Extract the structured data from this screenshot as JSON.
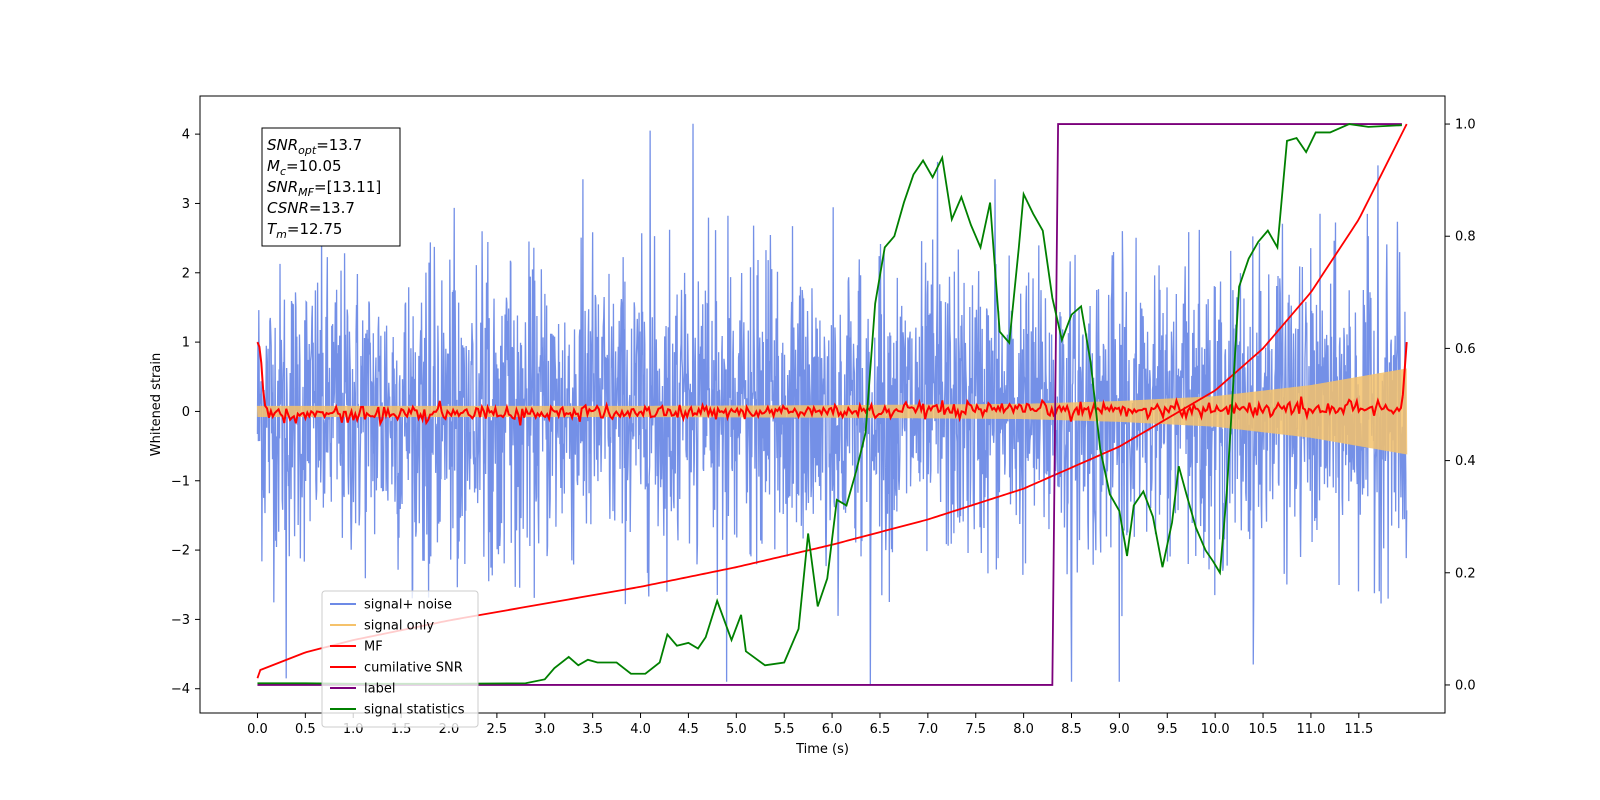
{
  "chart_data": {
    "type": "line",
    "xlabel": "Time (s)",
    "ylabel": "Whitened strain",
    "xlim": [
      -0.6,
      12.4
    ],
    "ylim": [
      -4.35,
      4.55
    ],
    "ylim_right": [
      -0.05,
      1.05
    ],
    "x_ticks": [
      "0.0",
      "0.5",
      "1.0",
      "1.5",
      "2.0",
      "2.5",
      "3.0",
      "3.5",
      "4.0",
      "4.5",
      "5.0",
      "5.5",
      "6.0",
      "6.5",
      "7.0",
      "7.5",
      "8.0",
      "8.5",
      "9.0",
      "9.5",
      "10.0",
      "10.5",
      "11.0",
      "11.5"
    ],
    "y_ticks": [
      "4",
      "3",
      "2",
      "1",
      "0",
      "−1",
      "−2",
      "−3",
      "−4"
    ],
    "y2_ticks": [
      "1.0",
      "0.8",
      "0.6",
      "0.4",
      "0.2",
      "0.0"
    ],
    "grid": false,
    "legend": {
      "placement": "lower-left",
      "entries": [
        {
          "label": "signal+ noise",
          "color": "#6d8ae6"
        },
        {
          "label": "signal only",
          "color": "#f5c26b"
        },
        {
          "label": "MF",
          "color": "#ff0000"
        },
        {
          "label": "cumilative SNR",
          "color": "#ff0000"
        },
        {
          "label": "label",
          "color": "#7b007b"
        },
        {
          "label": "signal statistics",
          "color": "#008000"
        }
      ]
    },
    "annotation": {
      "lines": [
        {
          "sym": "SNR",
          "sub": "opt",
          "val": "=13.7"
        },
        {
          "sym": "M",
          "sub": "c",
          "val": "=10.05"
        },
        {
          "sym": "SNR",
          "sub": "MF",
          "val": "=[13.11]"
        },
        {
          "sym": "CSNR",
          "sub": "",
          "val": "=13.7"
        },
        {
          "sym": "T",
          "sub": "m",
          "val": "=12.75"
        }
      ]
    },
    "series": [
      {
        "name": "signal+ noise",
        "axis": "left",
        "color": "#6d8ae6",
        "description_range": [
          -3.9,
          4.2
        ],
        "t_start": 0.0,
        "t_end": 12.0,
        "spikes": [
          {
            "x": 0.3,
            "y": -3.85
          },
          {
            "x": 4.1,
            "y": 4.05
          },
          {
            "x": 4.55,
            "y": 4.15
          },
          {
            "x": 4.9,
            "y": -3.9
          },
          {
            "x": 6.4,
            "y": -3.95
          },
          {
            "x": 8.5,
            "y": -3.9
          },
          {
            "x": 9.0,
            "y": -3.9
          },
          {
            "x": 10.4,
            "y": -3.65
          },
          {
            "x": 3.4,
            "y": 3.35
          },
          {
            "x": 7.1,
            "y": 3.6
          },
          {
            "x": 11.7,
            "y": 3.55
          },
          {
            "x": 7.7,
            "y": 3.35
          }
        ]
      },
      {
        "name": "signal only",
        "axis": "left",
        "color": "#f5c26b",
        "envelope": [
          {
            "x": 0.0,
            "amp": 0.08
          },
          {
            "x": 4.0,
            "amp": 0.08
          },
          {
            "x": 6.0,
            "amp": 0.09
          },
          {
            "x": 8.0,
            "amp": 0.11
          },
          {
            "x": 9.0,
            "amp": 0.15
          },
          {
            "x": 10.0,
            "amp": 0.22
          },
          {
            "x": 11.0,
            "amp": 0.38
          },
          {
            "x": 12.0,
            "amp": 0.62
          }
        ]
      },
      {
        "name": "MF",
        "axis": "left",
        "color": "#ff0000",
        "points": [
          {
            "x": 0.0,
            "y": 1.0
          },
          {
            "x": 0.03,
            "y": 0.9
          },
          {
            "x": 0.07,
            "y": 0.1
          },
          {
            "x": 0.15,
            "y": -0.05
          },
          {
            "x": 11.95,
            "y": 0.05
          },
          {
            "x": 12.0,
            "y": 1.0
          }
        ],
        "noise_amp": 0.1
      },
      {
        "name": "cumilative SNR",
        "axis": "right",
        "color": "#ff0000",
        "points": [
          {
            "x": 0.0,
            "y": 0.012
          },
          {
            "x": 0.02,
            "y": 0.026
          },
          {
            "x": 0.5,
            "y": 0.058
          },
          {
            "x": 1.0,
            "y": 0.08
          },
          {
            "x": 2.0,
            "y": 0.115
          },
          {
            "x": 3.0,
            "y": 0.145
          },
          {
            "x": 4.0,
            "y": 0.175
          },
          {
            "x": 5.0,
            "y": 0.21
          },
          {
            "x": 6.0,
            "y": 0.25
          },
          {
            "x": 7.0,
            "y": 0.295
          },
          {
            "x": 8.0,
            "y": 0.35
          },
          {
            "x": 9.0,
            "y": 0.425
          },
          {
            "x": 10.0,
            "y": 0.525
          },
          {
            "x": 10.5,
            "y": 0.6
          },
          {
            "x": 11.0,
            "y": 0.7
          },
          {
            "x": 11.5,
            "y": 0.83
          },
          {
            "x": 12.0,
            "y": 1.0
          }
        ]
      },
      {
        "name": "label",
        "axis": "right",
        "color": "#7b007b",
        "points": [
          {
            "x": 0.0,
            "y": 0.0
          },
          {
            "x": 8.3,
            "y": 0.0
          },
          {
            "x": 8.36,
            "y": 1.0
          },
          {
            "x": 11.95,
            "y": 1.0
          }
        ]
      },
      {
        "name": "signal statistics",
        "axis": "right",
        "color": "#008000",
        "points": [
          {
            "x": 0.0,
            "y": 0.003
          },
          {
            "x": 0.5,
            "y": 0.003
          },
          {
            "x": 1.0,
            "y": 0.002
          },
          {
            "x": 2.0,
            "y": 0.002
          },
          {
            "x": 2.8,
            "y": 0.003
          },
          {
            "x": 3.0,
            "y": 0.01
          },
          {
            "x": 3.1,
            "y": 0.03
          },
          {
            "x": 3.25,
            "y": 0.05
          },
          {
            "x": 3.35,
            "y": 0.035
          },
          {
            "x": 3.45,
            "y": 0.045
          },
          {
            "x": 3.55,
            "y": 0.04
          },
          {
            "x": 3.75,
            "y": 0.04
          },
          {
            "x": 3.9,
            "y": 0.02
          },
          {
            "x": 4.05,
            "y": 0.02
          },
          {
            "x": 4.2,
            "y": 0.04
          },
          {
            "x": 4.28,
            "y": 0.09
          },
          {
            "x": 4.38,
            "y": 0.07
          },
          {
            "x": 4.5,
            "y": 0.075
          },
          {
            "x": 4.6,
            "y": 0.065
          },
          {
            "x": 4.68,
            "y": 0.085
          },
          {
            "x": 4.8,
            "y": 0.15
          },
          {
            "x": 4.95,
            "y": 0.08
          },
          {
            "x": 5.05,
            "y": 0.125
          },
          {
            "x": 5.1,
            "y": 0.06
          },
          {
            "x": 5.3,
            "y": 0.035
          },
          {
            "x": 5.5,
            "y": 0.04
          },
          {
            "x": 5.65,
            "y": 0.1
          },
          {
            "x": 5.75,
            "y": 0.27
          },
          {
            "x": 5.85,
            "y": 0.14
          },
          {
            "x": 5.95,
            "y": 0.19
          },
          {
            "x": 6.05,
            "y": 0.33
          },
          {
            "x": 6.15,
            "y": 0.32
          },
          {
            "x": 6.25,
            "y": 0.38
          },
          {
            "x": 6.35,
            "y": 0.45
          },
          {
            "x": 6.45,
            "y": 0.68
          },
          {
            "x": 6.55,
            "y": 0.78
          },
          {
            "x": 6.65,
            "y": 0.8
          },
          {
            "x": 6.75,
            "y": 0.86
          },
          {
            "x": 6.85,
            "y": 0.91
          },
          {
            "x": 6.95,
            "y": 0.935
          },
          {
            "x": 7.05,
            "y": 0.905
          },
          {
            "x": 7.15,
            "y": 0.94
          },
          {
            "x": 7.25,
            "y": 0.83
          },
          {
            "x": 7.35,
            "y": 0.87
          },
          {
            "x": 7.45,
            "y": 0.82
          },
          {
            "x": 7.55,
            "y": 0.78
          },
          {
            "x": 7.65,
            "y": 0.86
          },
          {
            "x": 7.75,
            "y": 0.63
          },
          {
            "x": 7.85,
            "y": 0.61
          },
          {
            "x": 7.95,
            "y": 0.78
          },
          {
            "x": 8.0,
            "y": 0.875
          },
          {
            "x": 8.1,
            "y": 0.84
          },
          {
            "x": 8.2,
            "y": 0.81
          },
          {
            "x": 8.3,
            "y": 0.69
          },
          {
            "x": 8.4,
            "y": 0.615
          },
          {
            "x": 8.5,
            "y": 0.66
          },
          {
            "x": 8.6,
            "y": 0.675
          },
          {
            "x": 8.7,
            "y": 0.575
          },
          {
            "x": 8.8,
            "y": 0.42
          },
          {
            "x": 8.9,
            "y": 0.34
          },
          {
            "x": 9.0,
            "y": 0.31
          },
          {
            "x": 9.08,
            "y": 0.23
          },
          {
            "x": 9.15,
            "y": 0.32
          },
          {
            "x": 9.25,
            "y": 0.345
          },
          {
            "x": 9.35,
            "y": 0.3
          },
          {
            "x": 9.45,
            "y": 0.21
          },
          {
            "x": 9.55,
            "y": 0.29
          },
          {
            "x": 9.62,
            "y": 0.39
          },
          {
            "x": 9.7,
            "y": 0.34
          },
          {
            "x": 9.8,
            "y": 0.28
          },
          {
            "x": 9.9,
            "y": 0.24
          },
          {
            "x": 9.98,
            "y": 0.22
          },
          {
            "x": 10.05,
            "y": 0.2
          },
          {
            "x": 10.12,
            "y": 0.34
          },
          {
            "x": 10.25,
            "y": 0.71
          },
          {
            "x": 10.35,
            "y": 0.76
          },
          {
            "x": 10.45,
            "y": 0.79
          },
          {
            "x": 10.55,
            "y": 0.81
          },
          {
            "x": 10.65,
            "y": 0.78
          },
          {
            "x": 10.75,
            "y": 0.97
          },
          {
            "x": 10.85,
            "y": 0.975
          },
          {
            "x": 10.95,
            "y": 0.95
          },
          {
            "x": 11.05,
            "y": 0.985
          },
          {
            "x": 11.2,
            "y": 0.985
          },
          {
            "x": 11.4,
            "y": 1.0
          },
          {
            "x": 11.6,
            "y": 0.995
          },
          {
            "x": 11.95,
            "y": 0.998
          }
        ]
      }
    ]
  }
}
